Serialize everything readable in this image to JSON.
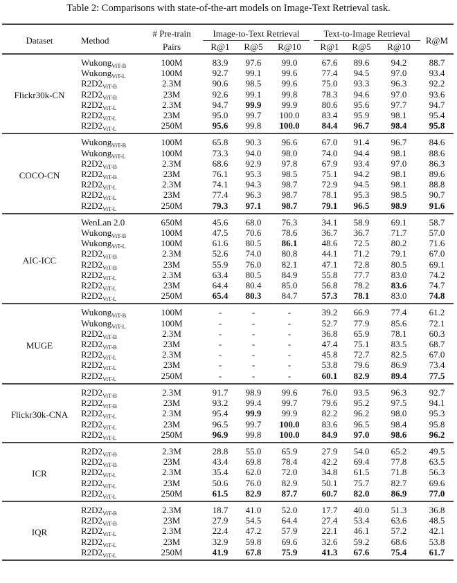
{
  "caption": "Table 2: Comparisons with state-of-the-art models on Image-Text Retrieval task.",
  "header": {
    "dataset": "Dataset",
    "method": "Method",
    "pairs_line1": "# Pre-train",
    "pairs_line2": "Pairs",
    "i2t": "Image-to-Text Retrieval",
    "t2i": "Text-to-Image Retrieval",
    "rm": "R@M",
    "metrics": [
      "R@1",
      "R@5",
      "R@10",
      "R@1",
      "R@5",
      "R@10"
    ]
  },
  "sections": [
    {
      "dataset": "Flickr30k-CN",
      "rows": [
        {
          "method": "Wukong",
          "sub": "ViT-B",
          "pairs": "100M",
          "values": [
            "83.9",
            "97.6",
            "99.0",
            "67.6",
            "89.6",
            "94.2",
            "88.7"
          ],
          "bold": []
        },
        {
          "method": "Wukong",
          "sub": "ViT-L",
          "pairs": "100M",
          "values": [
            "92.7",
            "99.1",
            "99.6",
            "77.4",
            "94.5",
            "97.0",
            "93.4"
          ],
          "bold": []
        },
        {
          "method": "R2D2",
          "sub": "ViT-B",
          "pairs": "2.3M",
          "values": [
            "90.6",
            "98.5",
            "99.6",
            "75.0",
            "93.3",
            "96.3",
            "92.2"
          ],
          "bold": []
        },
        {
          "method": "R2D2",
          "sub": "ViT-B",
          "pairs": "23M",
          "values": [
            "92.6",
            "99.1",
            "99.8",
            "78.3",
            "94.6",
            "97.0",
            "93.6"
          ],
          "bold": []
        },
        {
          "method": "R2D2",
          "sub": "ViT-L",
          "pairs": "2.3M",
          "values": [
            "94.7",
            "99.9",
            "99.9",
            "80.6",
            "95.6",
            "97.7",
            "94.7"
          ],
          "bold": [
            1
          ]
        },
        {
          "method": "R2D2",
          "sub": "ViT-L",
          "pairs": "23M",
          "values": [
            "95.0",
            "99.7",
            "100.0",
            "83.4",
            "95.9",
            "98.1",
            "95.4"
          ],
          "bold": []
        },
        {
          "method": "R2D2",
          "sub": "ViT-L",
          "pairs": "250M",
          "values": [
            "95.6",
            "99.8",
            "100.0",
            "84.4",
            "96.7",
            "98.4",
            "95.8"
          ],
          "bold": [
            0,
            2,
            3,
            4,
            5,
            6
          ]
        }
      ]
    },
    {
      "dataset": "COCO-CN",
      "rows": [
        {
          "method": "Wukong",
          "sub": "ViT-B",
          "pairs": "100M",
          "values": [
            "65.8",
            "90.3",
            "96.6",
            "67.0",
            "91.4",
            "96.7",
            "84.6"
          ],
          "bold": []
        },
        {
          "method": "Wukong",
          "sub": "ViT-L",
          "pairs": "100M",
          "values": [
            "73.3",
            "94.0",
            "98.0",
            "74.0",
            "94.4",
            "98.1",
            "88.6"
          ],
          "bold": []
        },
        {
          "method": "R2D2",
          "sub": "ViT-B",
          "pairs": "2.3M",
          "values": [
            "68.6",
            "92.9",
            "97.8",
            "67.9",
            "93.4",
            "97.0",
            "86.3"
          ],
          "bold": []
        },
        {
          "method": "R2D2",
          "sub": "ViT-B",
          "pairs": "23M",
          "values": [
            "76.1",
            "95.3",
            "98.5",
            "75.1",
            "94.2",
            "98.1",
            "89.6"
          ],
          "bold": []
        },
        {
          "method": "R2D2",
          "sub": "ViT-L",
          "pairs": "2.3M",
          "values": [
            "74.1",
            "94.3",
            "98.7",
            "72.9",
            "94.5",
            "98.1",
            "88.8"
          ],
          "bold": []
        },
        {
          "method": "R2D2",
          "sub": "ViT-L",
          "pairs": "23M",
          "values": [
            "77.4",
            "96.3",
            "98.7",
            "78.1",
            "95.3",
            "98.5",
            "90.7"
          ],
          "bold": []
        },
        {
          "method": "R2D2",
          "sub": "ViT-L",
          "pairs": "250M",
          "values": [
            "79.3",
            "97.1",
            "98.7",
            "79.1",
            "96.5",
            "98.9",
            "91.6"
          ],
          "bold": [
            0,
            1,
            2,
            3,
            4,
            5,
            6
          ]
        }
      ]
    },
    {
      "dataset": "AIC-ICC",
      "rows": [
        {
          "method": "WenLan 2.0",
          "sub": "",
          "pairs": "650M",
          "values": [
            "45.6",
            "68.0",
            "76.3",
            "34.1",
            "58.9",
            "69.1",
            "58.7"
          ],
          "bold": []
        },
        {
          "method": "Wukong",
          "sub": "ViT-B",
          "pairs": "100M",
          "values": [
            "47.5",
            "70.6",
            "78.6",
            "36.7",
            "36.7",
            "71.7",
            "57.0"
          ],
          "bold": []
        },
        {
          "method": "Wukong",
          "sub": "ViT-L",
          "pairs": "100M",
          "values": [
            "61.6",
            "80.5",
            "86.1",
            "48.6",
            "72.5",
            "80.2",
            "71.6"
          ],
          "bold": [
            2
          ]
        },
        {
          "method": "R2D2",
          "sub": "ViT-B",
          "pairs": "2.3M",
          "values": [
            "52.6",
            "74.0",
            "80.8",
            "44.1",
            "71.2",
            "79.1",
            "67.0"
          ],
          "bold": []
        },
        {
          "method": "R2D2",
          "sub": "ViT-B",
          "pairs": "23M",
          "values": [
            "55.9",
            "76.0",
            "82.1",
            "47.1",
            "72.8",
            "80.5",
            "69.1"
          ],
          "bold": []
        },
        {
          "method": "R2D2",
          "sub": "ViT-L",
          "pairs": "2.3M",
          "values": [
            "63.4",
            "80.5",
            "84.9",
            "55.8",
            "77.7",
            "83.0",
            "74.2"
          ],
          "bold": []
        },
        {
          "method": "R2D2",
          "sub": "ViT-L",
          "pairs": "23M",
          "values": [
            "64.4",
            "80.4",
            "85.0",
            "56.8",
            "78.2",
            "83.6",
            "74.7"
          ],
          "bold": [
            5
          ]
        },
        {
          "method": "R2D2",
          "sub": "ViT-L",
          "pairs": "250M",
          "values": [
            "65.4",
            "80.3",
            "84.7",
            "57.3",
            "78.1",
            "83.0",
            "74.8"
          ],
          "bold": [
            0,
            1,
            3,
            4,
            6
          ]
        }
      ]
    },
    {
      "dataset": "MUGE",
      "rows": [
        {
          "method": "Wukong",
          "sub": "ViT-B",
          "pairs": "100M",
          "values": [
            "-",
            "-",
            "-",
            "39.2",
            "66.9",
            "77.4",
            "61.2"
          ],
          "bold": []
        },
        {
          "method": "Wukong",
          "sub": "ViT-L",
          "pairs": "100M",
          "values": [
            "-",
            "-",
            "-",
            "52.7",
            "77.9",
            "85.6",
            "72.1"
          ],
          "bold": []
        },
        {
          "method": "R2D2",
          "sub": "ViT-B",
          "pairs": "2.3M",
          "values": [
            "-",
            "-",
            "-",
            "36.8",
            "65.9",
            "78.1",
            "60.3"
          ],
          "bold": []
        },
        {
          "method": "R2D2",
          "sub": "ViT-B",
          "pairs": "23M",
          "values": [
            "-",
            "-",
            "-",
            "47.4",
            "75.1",
            "83.5",
            "68.7"
          ],
          "bold": []
        },
        {
          "method": "R2D2",
          "sub": "ViT-L",
          "pairs": "2.3M",
          "values": [
            "-",
            "-",
            "-",
            "45.8",
            "72.7",
            "82.5",
            "67.0"
          ],
          "bold": []
        },
        {
          "method": "R2D2",
          "sub": "ViT-L",
          "pairs": "23M",
          "values": [
            "-",
            "-",
            "-",
            "53.8",
            "79.6",
            "86.9",
            "73.4"
          ],
          "bold": []
        },
        {
          "method": "R2D2",
          "sub": "ViT-L",
          "pairs": "250M",
          "values": [
            "-",
            "-",
            "-",
            "60.1",
            "82.9",
            "89.4",
            "77.5"
          ],
          "bold": [
            3,
            4,
            5,
            6
          ]
        }
      ]
    },
    {
      "dataset": "Flickr30k-CNA",
      "rows": [
        {
          "method": "R2D2",
          "sub": "ViT-B",
          "pairs": "2.3M",
          "values": [
            "91.7",
            "98.9",
            "99.6",
            "76.0",
            "93.5",
            "96.3",
            "92.7"
          ],
          "bold": []
        },
        {
          "method": "R2D2",
          "sub": "ViT-B",
          "pairs": "23M",
          "values": [
            "93.2",
            "99.4",
            "99.7",
            "79.6",
            "95.2",
            "97.5",
            "94.1"
          ],
          "bold": []
        },
        {
          "method": "R2D2",
          "sub": "ViT-L",
          "pairs": "2.3M",
          "values": [
            "95.4",
            "99.9",
            "99.9",
            "82.2",
            "96.2",
            "98.0",
            "95.3"
          ],
          "bold": [
            1
          ]
        },
        {
          "method": "R2D2",
          "sub": "ViT-L",
          "pairs": "23M",
          "values": [
            "96.5",
            "99.7",
            "100.0",
            "83.6",
            "96.5",
            "98.4",
            "95.8"
          ],
          "bold": [
            2
          ]
        },
        {
          "method": "R2D2",
          "sub": "ViT-L",
          "pairs": "250M",
          "values": [
            "96.9",
            "99.8",
            "100.0",
            "84.9",
            "97.0",
            "98.6",
            "96.2"
          ],
          "bold": [
            0,
            2,
            3,
            4,
            5,
            6
          ]
        }
      ]
    },
    {
      "dataset": "ICR",
      "rows": [
        {
          "method": "R2D2",
          "sub": "ViT-B",
          "pairs": "2.3M",
          "values": [
            "28.8",
            "55.0",
            "65.9",
            "27.9",
            "54.0",
            "65.2",
            "49.5"
          ],
          "bold": []
        },
        {
          "method": "R2D2",
          "sub": "ViT-B",
          "pairs": "23M",
          "values": [
            "43.4",
            "69.8",
            "78.4",
            "42.2",
            "69.4",
            "77.8",
            "63.5"
          ],
          "bold": []
        },
        {
          "method": "R2D2",
          "sub": "ViT-L",
          "pairs": "2.3M",
          "values": [
            "35.4",
            "62.0",
            "72.0",
            "34.8",
            "61.5",
            "71.8",
            "56.3"
          ],
          "bold": []
        },
        {
          "method": "R2D2",
          "sub": "ViT-L",
          "pairs": "23M",
          "values": [
            "50.6",
            "76.0",
            "82.9",
            "50.1",
            "75.7",
            "82.7",
            "69.6"
          ],
          "bold": []
        },
        {
          "method": "R2D2",
          "sub": "ViT-L",
          "pairs": "250M",
          "values": [
            "61.5",
            "82.9",
            "87.7",
            "60.7",
            "82.0",
            "86.9",
            "77.0"
          ],
          "bold": [
            0,
            1,
            2,
            3,
            4,
            5,
            6
          ]
        }
      ]
    },
    {
      "dataset": "IQR",
      "rows": [
        {
          "method": "R2D2",
          "sub": "ViT-B",
          "pairs": "2.3M",
          "values": [
            "18.7",
            "41.0",
            "52.0",
            "17.7",
            "40.0",
            "51.3",
            "36.8"
          ],
          "bold": []
        },
        {
          "method": "R2D2",
          "sub": "ViT-B",
          "pairs": "23M",
          "values": [
            "27.9",
            "54.5",
            "64.4",
            "27.4",
            "53.4",
            "63.6",
            "48.5"
          ],
          "bold": []
        },
        {
          "method": "R2D2",
          "sub": "ViT-L",
          "pairs": "2.3M",
          "values": [
            "22.4",
            "47.2",
            "57.9",
            "22.1",
            "46.1",
            "57.2",
            "42.1"
          ],
          "bold": []
        },
        {
          "method": "R2D2",
          "sub": "ViT-L",
          "pairs": "23M",
          "values": [
            "32.9",
            "59.8",
            "69.6",
            "32.6",
            "59.2",
            "68.6",
            "53.8"
          ],
          "bold": []
        },
        {
          "method": "R2D2",
          "sub": "ViT-L",
          "pairs": "250M",
          "values": [
            "41.9",
            "67.8",
            "75.9",
            "41.3",
            "67.6",
            "75.4",
            "61.7"
          ],
          "bold": [
            0,
            1,
            2,
            3,
            4,
            5,
            6
          ]
        }
      ]
    }
  ]
}
